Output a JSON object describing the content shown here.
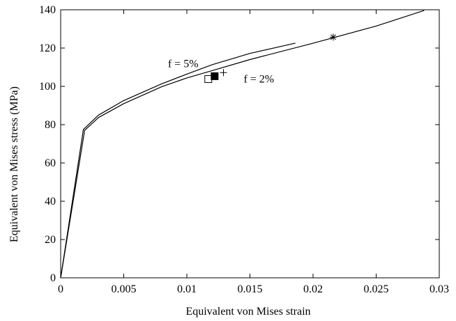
{
  "chart_data": {
    "type": "line",
    "xlabel": "Equivalent von Mises strain",
    "ylabel": "Equivalent von Mises stress (MPa)",
    "xlim": [
      0,
      0.03
    ],
    "ylim": [
      0,
      140
    ],
    "x_ticks": [
      0,
      0.005,
      0.01,
      0.015,
      0.02,
      0.025,
      0.03
    ],
    "x_tick_labels": [
      "0",
      "0.005",
      "0.01",
      "0.015",
      "0.02",
      "0.025",
      "0.03"
    ],
    "y_ticks": [
      0,
      20,
      40,
      60,
      80,
      100,
      120,
      140
    ],
    "y_tick_labels": [
      "0",
      "20",
      "40",
      "60",
      "80",
      "100",
      "120",
      "140"
    ],
    "grid": false,
    "series": [
      {
        "points": [
          [
            0,
            0
          ],
          [
            0.0018,
            77.5
          ],
          [
            0.003,
            85
          ],
          [
            0.005,
            92.6
          ],
          [
            0.008,
            101.3
          ],
          [
            0.01,
            106.4
          ],
          [
            0.012,
            111.3
          ],
          [
            0.015,
            117.2
          ],
          [
            0.0186,
            122.6
          ]
        ]
      },
      {
        "points": [
          [
            0,
            0
          ],
          [
            0.0019,
            77
          ],
          [
            0.003,
            83.7
          ],
          [
            0.005,
            91
          ],
          [
            0.008,
            99.8
          ],
          [
            0.01,
            104.4
          ],
          [
            0.012,
            108.2
          ],
          [
            0.015,
            114
          ],
          [
            0.02,
            122.5
          ],
          [
            0.025,
            131.5
          ],
          [
            0.0288,
            139.6
          ]
        ]
      }
    ],
    "markers": [
      {
        "shape": "open-square",
        "x": 0.0117,
        "y": 103.8
      },
      {
        "shape": "filled-square",
        "x": 0.0122,
        "y": 105.3
      },
      {
        "shape": "plus",
        "x": 0.0129,
        "y": 107.2
      },
      {
        "shape": "asterisk",
        "x": 0.0216,
        "y": 125.7
      }
    ],
    "annotations": [
      {
        "text": "f = 5%",
        "x": 0.0085,
        "y": 110
      },
      {
        "text": "f = 2%",
        "x": 0.0145,
        "y": 102
      }
    ]
  }
}
